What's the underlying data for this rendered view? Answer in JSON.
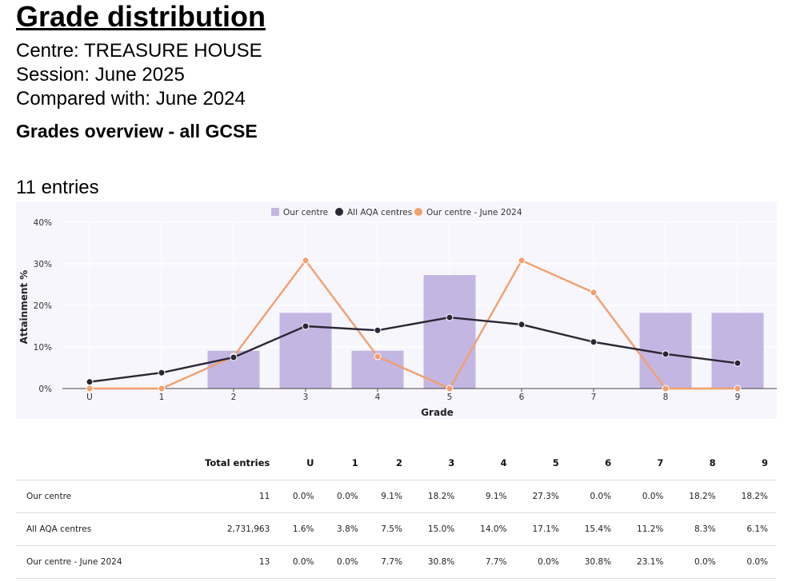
{
  "header": {
    "title": "Grade distribution",
    "centre": "Centre: TREASURE HOUSE",
    "session": "Session: June 2025",
    "compared": "Compared with: June 2024",
    "overview": "Grades overview - all GCSE",
    "entries": "11 entries"
  },
  "colors": {
    "bar": "#c3b6e2",
    "aqa": "#2b2635",
    "prev": "#f1a06e",
    "plot_bg": "#f7f6fd",
    "text": "#333333"
  },
  "chart_data": {
    "type": "bar",
    "xlabel": "Grade",
    "ylabel": "Attainment %",
    "ylim": [
      0,
      40
    ],
    "yticks": [
      "0%",
      "10%",
      "20%",
      "30%",
      "40%"
    ],
    "ytick_values": [
      0,
      10,
      20,
      30,
      40
    ],
    "categories": [
      "U",
      "1",
      "2",
      "3",
      "4",
      "5",
      "6",
      "7",
      "8",
      "9"
    ],
    "legend": {
      "position": "top-center",
      "items": [
        "Our centre",
        "All AQA centres",
        "Our centre - June 2024"
      ]
    },
    "series": [
      {
        "name": "Our centre",
        "kind": "bar",
        "values": [
          0.0,
          0.0,
          9.1,
          18.2,
          9.1,
          27.3,
          0.0,
          0.0,
          18.2,
          18.2
        ]
      },
      {
        "name": "All AQA centres",
        "kind": "line",
        "values": [
          1.6,
          3.8,
          7.5,
          15.0,
          14.0,
          17.1,
          15.4,
          11.2,
          8.3,
          6.1
        ]
      },
      {
        "name": "Our centre - June 2024",
        "kind": "line",
        "values": [
          0.0,
          0.0,
          7.7,
          30.8,
          7.7,
          0.0,
          30.8,
          23.1,
          0.0,
          0.0
        ]
      }
    ]
  },
  "table": {
    "headers": [
      "",
      "Total entries",
      "U",
      "1",
      "2",
      "3",
      "4",
      "5",
      "6",
      "7",
      "8",
      "9"
    ],
    "rows": [
      [
        "Our centre",
        "11",
        "0.0%",
        "0.0%",
        "9.1%",
        "18.2%",
        "9.1%",
        "27.3%",
        "0.0%",
        "0.0%",
        "18.2%",
        "18.2%"
      ],
      [
        "All AQA centres",
        "2,731,963",
        "1.6%",
        "3.8%",
        "7.5%",
        "15.0%",
        "14.0%",
        "17.1%",
        "15.4%",
        "11.2%",
        "8.3%",
        "6.1%"
      ],
      [
        "Our centre - June 2024",
        "13",
        "0.0%",
        "0.0%",
        "7.7%",
        "30.8%",
        "7.7%",
        "0.0%",
        "30.8%",
        "23.1%",
        "0.0%",
        "0.0%"
      ]
    ]
  }
}
